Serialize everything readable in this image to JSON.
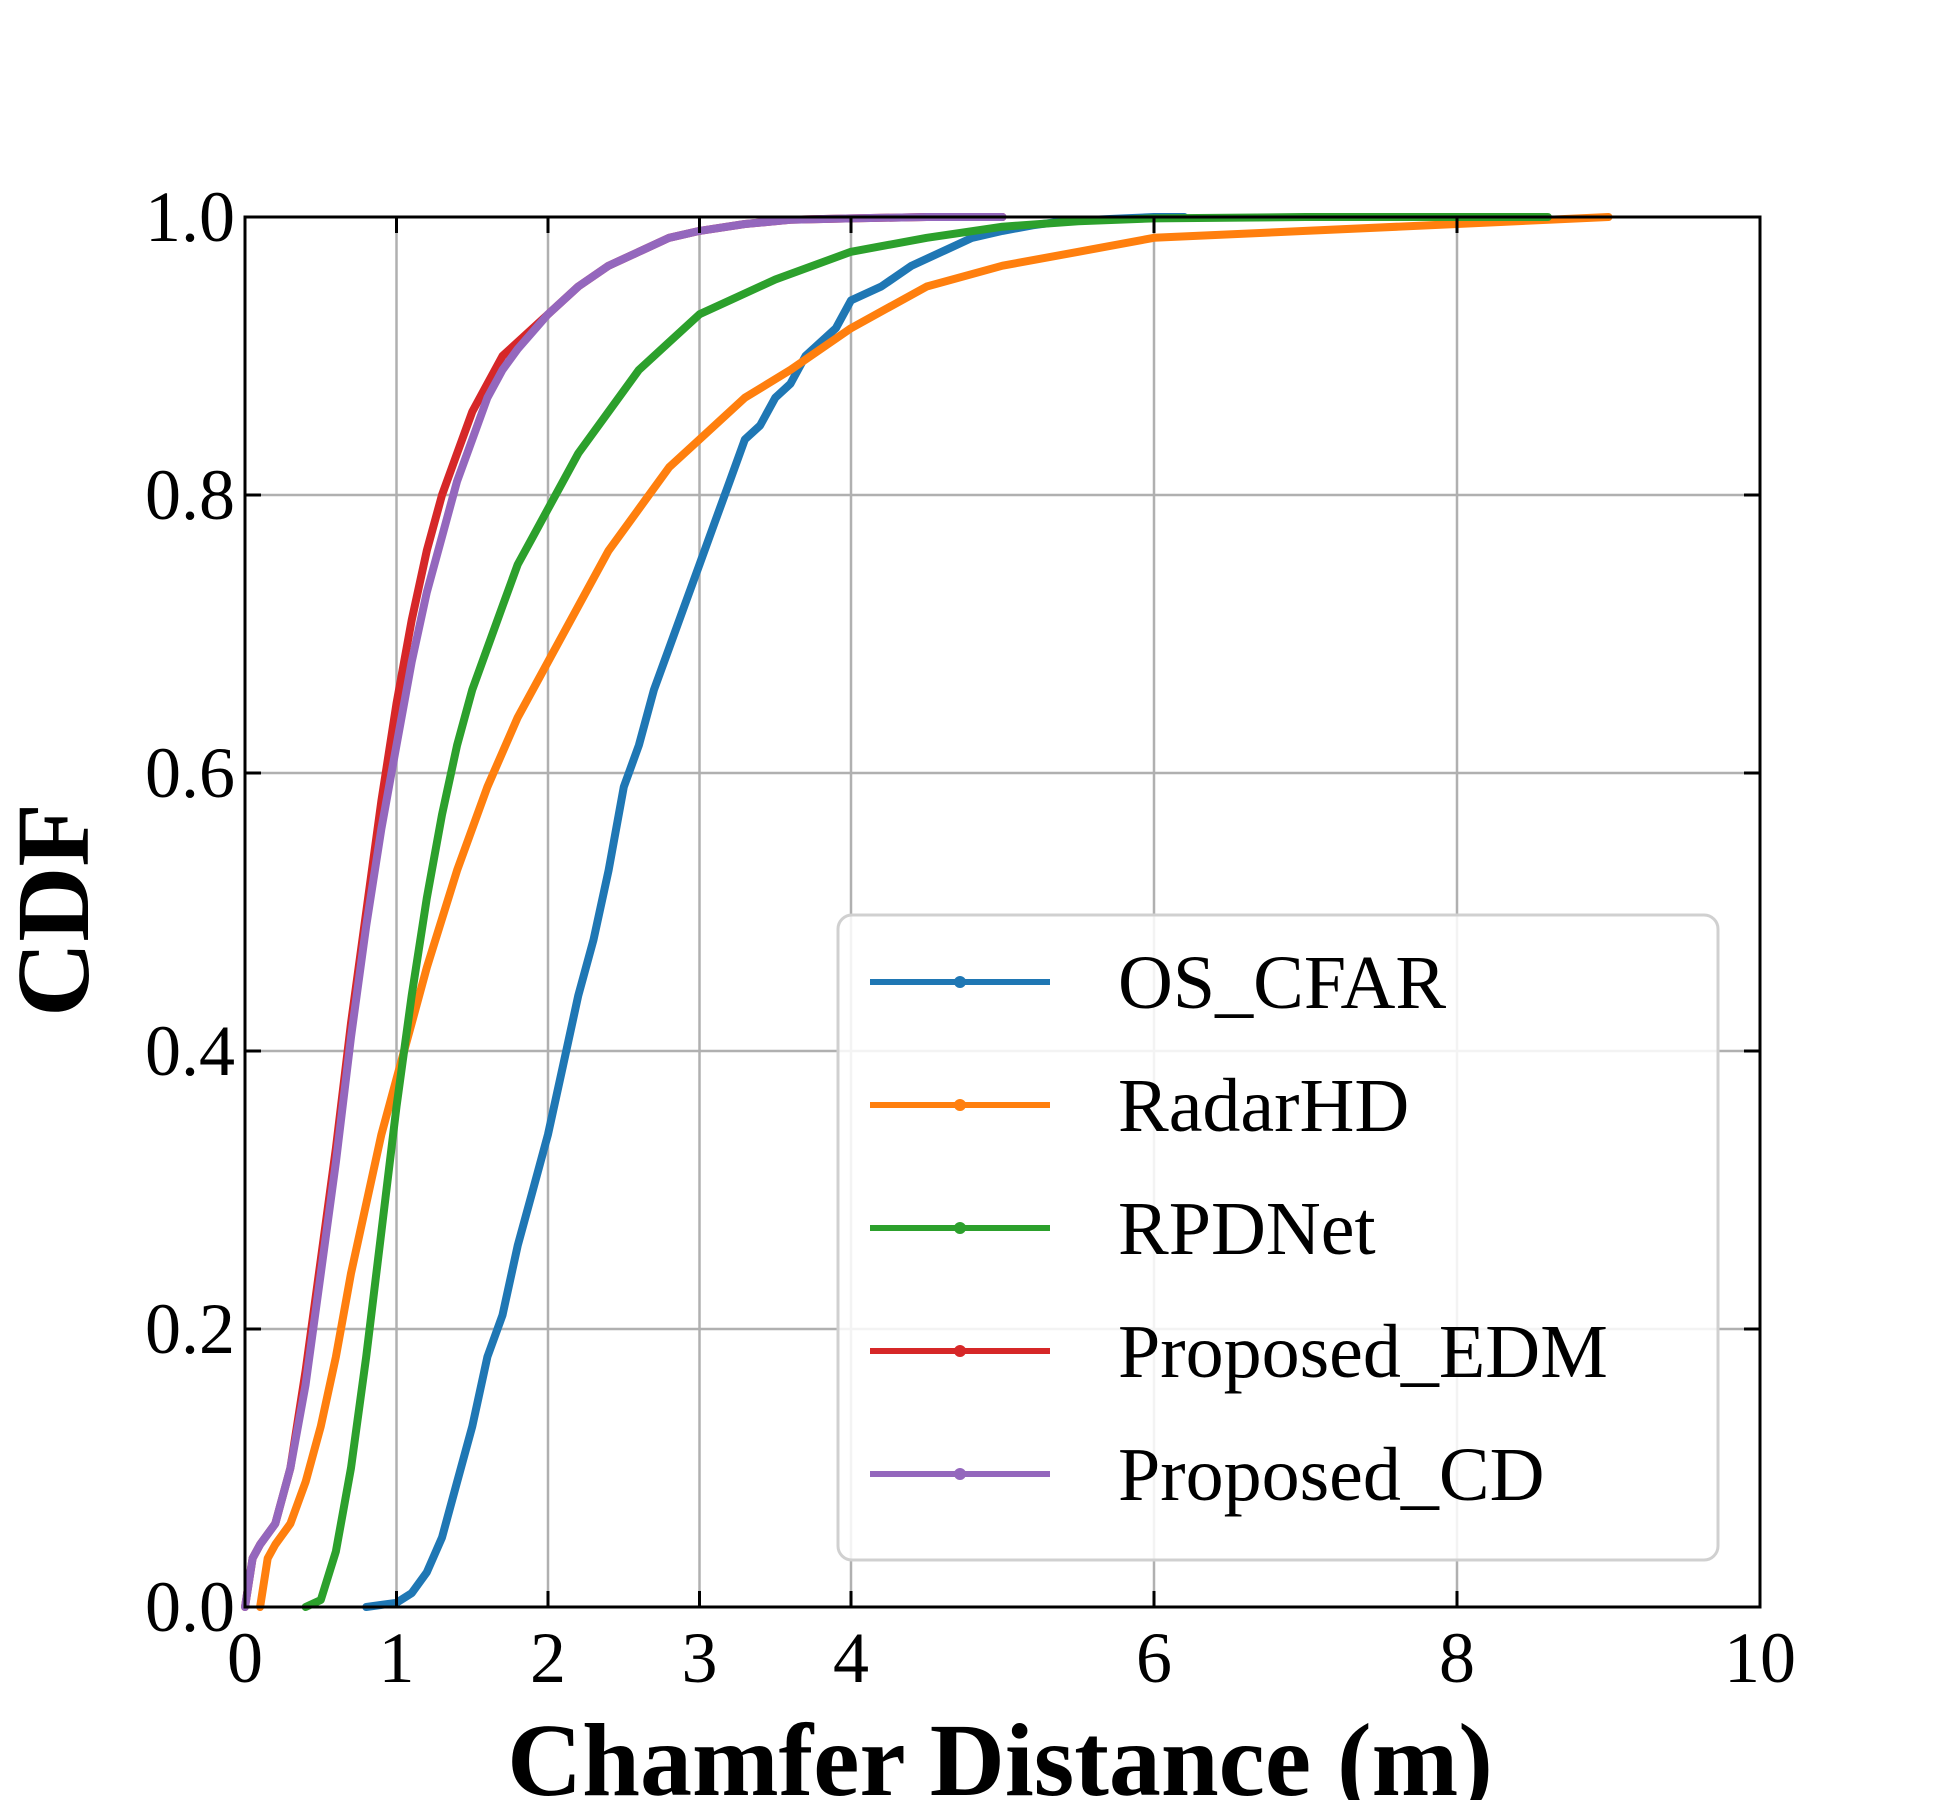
{
  "chart_data": {
    "type": "line",
    "title": "",
    "xlabel": "Chamfer Distance (m)",
    "ylabel": "CDF",
    "xlim": [
      0,
      10
    ],
    "ylim": [
      0,
      1
    ],
    "xticks": [
      0,
      1,
      2,
      3,
      4,
      6,
      8,
      10
    ],
    "xtick_labels": [
      "0",
      "1",
      "2",
      "3",
      "4",
      "6",
      "8",
      "10"
    ],
    "yticks": [
      0,
      0.2,
      0.4,
      0.6,
      0.8,
      1.0
    ],
    "ytick_labels": [
      "0.0",
      "0.2",
      "0.4",
      "0.6",
      "0.8",
      "1.0"
    ],
    "grid": true,
    "legend_position": "lower-right",
    "series": [
      {
        "name": "OS_CFAR",
        "color": "#1f77b4",
        "x": [
          0.8,
          1.0,
          1.1,
          1.2,
          1.3,
          1.4,
          1.5,
          1.6,
          1.7,
          1.8,
          1.9,
          2.0,
          2.1,
          2.2,
          2.3,
          2.4,
          2.5,
          2.6,
          2.7,
          2.8,
          2.9,
          3.0,
          3.1,
          3.2,
          3.3,
          3.4,
          3.5,
          3.6,
          3.7,
          3.8,
          3.9,
          4.0,
          4.2,
          4.4,
          4.6,
          4.8,
          5.0,
          5.2,
          5.4,
          5.6,
          5.8,
          6.0,
          6.2
        ],
        "y": [
          0.0,
          0.003,
          0.01,
          0.025,
          0.05,
          0.09,
          0.13,
          0.18,
          0.21,
          0.26,
          0.3,
          0.34,
          0.39,
          0.44,
          0.48,
          0.53,
          0.59,
          0.62,
          0.66,
          0.69,
          0.72,
          0.75,
          0.78,
          0.81,
          0.84,
          0.85,
          0.87,
          0.88,
          0.9,
          0.91,
          0.92,
          0.94,
          0.95,
          0.965,
          0.975,
          0.985,
          0.99,
          0.994,
          0.997,
          0.998,
          0.999,
          1.0,
          1.0
        ],
        "x_note": "",
        "y_note": ""
      },
      {
        "name": "RadarHD",
        "color": "#ff7f0e",
        "x": [
          0.1,
          0.15,
          0.2,
          0.3,
          0.4,
          0.5,
          0.6,
          0.7,
          0.8,
          0.9,
          1.0,
          1.1,
          1.2,
          1.4,
          1.6,
          1.8,
          2.0,
          2.2,
          2.4,
          2.6,
          2.8,
          3.0,
          3.3,
          3.6,
          4.0,
          4.5,
          5.0,
          5.5,
          6.0,
          7.0,
          8.0,
          9.0
        ],
        "y": [
          0.0,
          0.035,
          0.045,
          0.06,
          0.09,
          0.13,
          0.18,
          0.24,
          0.29,
          0.34,
          0.38,
          0.42,
          0.46,
          0.53,
          0.59,
          0.64,
          0.68,
          0.72,
          0.76,
          0.79,
          0.82,
          0.84,
          0.87,
          0.89,
          0.92,
          0.95,
          0.965,
          0.975,
          0.985,
          0.99,
          0.995,
          1.0
        ],
        "x_note": "",
        "y_note": ""
      },
      {
        "name": "RPDNet",
        "color": "#2ca02c",
        "x": [
          0.4,
          0.5,
          0.6,
          0.7,
          0.8,
          0.9,
          1.0,
          1.1,
          1.2,
          1.3,
          1.4,
          1.5,
          1.6,
          1.7,
          1.8,
          1.9,
          2.0,
          2.2,
          2.4,
          2.6,
          2.8,
          3.0,
          3.2,
          3.5,
          4.0,
          4.5,
          5.0,
          5.5,
          6.0,
          7.0,
          8.6
        ],
        "y": [
          0.0,
          0.005,
          0.04,
          0.1,
          0.18,
          0.27,
          0.36,
          0.44,
          0.51,
          0.57,
          0.62,
          0.66,
          0.69,
          0.72,
          0.75,
          0.77,
          0.79,
          0.83,
          0.86,
          0.89,
          0.91,
          0.93,
          0.94,
          0.955,
          0.975,
          0.985,
          0.993,
          0.997,
          0.999,
          1.0,
          1.0
        ],
        "x_note": "",
        "y_note": ""
      },
      {
        "name": "Proposed_EDM",
        "color": "#d62728",
        "x": [
          0.0,
          0.05,
          0.1,
          0.2,
          0.3,
          0.4,
          0.5,
          0.6,
          0.7,
          0.8,
          0.9,
          1.0,
          1.1,
          1.2,
          1.3,
          1.4,
          1.5,
          1.6,
          1.7,
          1.8,
          2.0,
          2.2,
          2.4,
          2.6,
          2.8,
          3.0,
          3.3,
          3.6,
          4.0,
          4.5,
          5.0
        ],
        "y": [
          0.0,
          0.035,
          0.045,
          0.06,
          0.1,
          0.17,
          0.25,
          0.33,
          0.42,
          0.5,
          0.58,
          0.65,
          0.71,
          0.76,
          0.8,
          0.83,
          0.86,
          0.88,
          0.9,
          0.91,
          0.93,
          0.95,
          0.965,
          0.975,
          0.985,
          0.99,
          0.995,
          0.998,
          0.999,
          1.0,
          1.0
        ],
        "x_note": "",
        "y_note": ""
      },
      {
        "name": "Proposed_CD",
        "color": "#9467bd",
        "x": [
          0.0,
          0.05,
          0.1,
          0.2,
          0.3,
          0.4,
          0.5,
          0.6,
          0.7,
          0.8,
          0.9,
          1.0,
          1.1,
          1.2,
          1.3,
          1.4,
          1.5,
          1.6,
          1.7,
          1.8,
          2.0,
          2.2,
          2.4,
          2.6,
          2.8,
          3.0,
          3.3,
          3.6,
          4.0,
          4.5,
          5.0
        ],
        "y": [
          0.0,
          0.035,
          0.045,
          0.06,
          0.1,
          0.16,
          0.24,
          0.32,
          0.41,
          0.49,
          0.56,
          0.62,
          0.68,
          0.73,
          0.77,
          0.81,
          0.84,
          0.87,
          0.89,
          0.905,
          0.93,
          0.95,
          0.965,
          0.975,
          0.985,
          0.99,
          0.995,
          0.998,
          0.999,
          1.0,
          1.0
        ],
        "x_note": "",
        "y_note": ""
      }
    ]
  }
}
